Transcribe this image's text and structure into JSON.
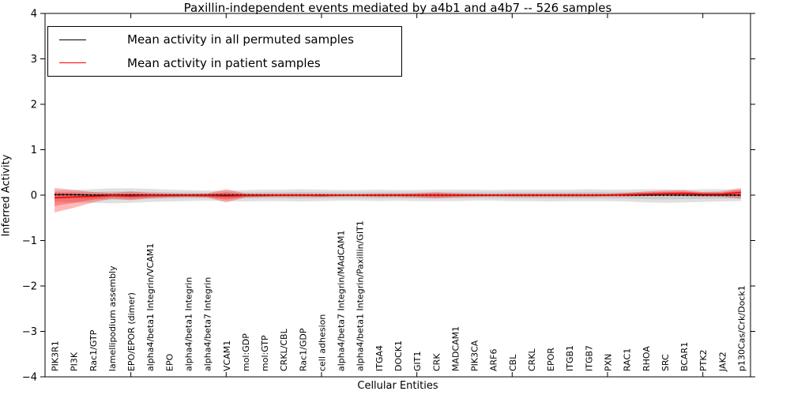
{
  "chart_data": {
    "type": "line",
    "title": "Paxillin-independent events mediated by a4b1 and a4b7 -- 526 samples",
    "xlabel": "Cellular Entities",
    "ylabel": "Inferred Activity",
    "ylim": [
      -4,
      4
    ],
    "yticks": [
      4,
      3,
      2,
      1,
      0,
      -1,
      -2,
      -3,
      -4
    ],
    "ytick_labels": [
      "4",
      "3",
      "2",
      "1",
      "0",
      "−1",
      "−2",
      "−3",
      "−4"
    ],
    "xtick_indices": [
      4,
      9,
      14,
      19,
      24,
      29,
      34
    ],
    "grid": false,
    "legend_position": "upper left",
    "categories": [
      "PIK3R1",
      "PI3K",
      "Rac1/GTP",
      "lamellipodium assembly",
      "EPO/EPOR (dimer)",
      "alpha4/beta1 Integrin/VCAM1",
      "EPO",
      "alpha4/beta1 Integrin",
      "alpha4/beta7 Integrin",
      "VCAM1",
      "mol:GDP",
      "mol:GTP",
      "CRKL/CBL",
      "Rac1/GDP",
      "cell adhesion",
      "alpha4/beta7 Integrin/MAdCAM1",
      "alpha4/beta1 Integrin/Paxillin/GIT1",
      "ITGA4",
      "DOCK1",
      "GIT1",
      "CRK",
      "MADCAM1",
      "PIK3CA",
      "ARF6",
      "CBL",
      "CRKL",
      "EPOR",
      "ITGB1",
      "ITGB7",
      "PXN",
      "RAC1",
      "RHOA",
      "SRC",
      "BCAR1",
      "PTK2",
      "JAK2",
      "p130Cas/Crk/Dock1"
    ],
    "series": [
      {
        "name": "Mean activity in all permuted samples",
        "color": "#000000",
        "line_style": "dotted",
        "values": [
          0.01,
          0.01,
          0.0,
          0.0,
          0.0,
          0.0,
          0.0,
          0.0,
          0.0,
          0.0,
          0.0,
          0.0,
          0.0,
          0.0,
          0.0,
          0.0,
          0.0,
          0.0,
          0.0,
          0.0,
          0.0,
          0.0,
          0.0,
          0.0,
          0.0,
          0.0,
          0.0,
          0.0,
          0.0,
          0.0,
          0.0,
          0.0,
          0.0,
          0.0,
          0.0,
          0.0,
          0.0
        ]
      },
      {
        "name": "Mean activity in patient samples",
        "color": "#ff0000",
        "line_style": "solid",
        "values": [
          -0.06,
          -0.04,
          -0.03,
          -0.01,
          -0.02,
          -0.01,
          -0.01,
          -0.01,
          -0.01,
          -0.02,
          -0.01,
          -0.01,
          0.0,
          0.0,
          -0.01,
          0.0,
          0.0,
          0.0,
          0.0,
          0.0,
          0.0,
          0.0,
          0.0,
          0.0,
          0.0,
          0.0,
          0.0,
          0.0,
          0.0,
          0.0,
          0.01,
          0.02,
          0.03,
          0.04,
          0.02,
          0.02,
          0.06
        ]
      }
    ],
    "bands": [
      {
        "name": "permuted-samples-envelope",
        "series": 0,
        "color": "#999999",
        "opacity": 0.3,
        "inner_scale": 0.55,
        "upper": [
          0.1,
          0.12,
          0.13,
          0.15,
          0.15,
          0.14,
          0.12,
          0.11,
          0.1,
          0.1,
          0.11,
          0.12,
          0.12,
          0.13,
          0.12,
          0.11,
          0.11,
          0.12,
          0.11,
          0.11,
          0.12,
          0.12,
          0.12,
          0.11,
          0.12,
          0.12,
          0.12,
          0.12,
          0.13,
          0.12,
          0.12,
          0.13,
          0.13,
          0.12,
          0.13,
          0.13,
          0.12
        ],
        "lower": [
          -0.14,
          -0.16,
          -0.17,
          -0.18,
          -0.17,
          -0.15,
          -0.14,
          -0.13,
          -0.12,
          -0.13,
          -0.14,
          -0.13,
          -0.13,
          -0.14,
          -0.13,
          -0.12,
          -0.12,
          -0.13,
          -0.12,
          -0.13,
          -0.13,
          -0.13,
          -0.12,
          -0.12,
          -0.13,
          -0.13,
          -0.14,
          -0.13,
          -0.13,
          -0.13,
          -0.14,
          -0.16,
          -0.17,
          -0.16,
          -0.15,
          -0.14,
          -0.13
        ]
      },
      {
        "name": "patient-samples-envelope",
        "series": 1,
        "color": "#ff0000",
        "opacity": 0.28,
        "inner_scale": 0.55,
        "upper": [
          0.16,
          0.11,
          0.07,
          0.05,
          0.08,
          0.05,
          0.04,
          0.03,
          0.04,
          0.13,
          0.04,
          0.03,
          0.03,
          0.03,
          0.03,
          0.02,
          0.02,
          0.03,
          0.03,
          0.04,
          0.06,
          0.04,
          0.03,
          0.02,
          0.03,
          0.03,
          0.03,
          0.03,
          0.03,
          0.03,
          0.05,
          0.08,
          0.1,
          0.11,
          0.07,
          0.08,
          0.16
        ],
        "lower": [
          -0.38,
          -0.28,
          -0.16,
          -0.08,
          -0.11,
          -0.07,
          -0.05,
          -0.04,
          -0.05,
          -0.16,
          -0.05,
          -0.04,
          -0.04,
          -0.04,
          -0.04,
          -0.03,
          -0.03,
          -0.04,
          -0.04,
          -0.05,
          -0.07,
          -0.05,
          -0.04,
          -0.03,
          -0.04,
          -0.04,
          -0.04,
          -0.04,
          -0.04,
          -0.03,
          -0.03,
          -0.02,
          -0.01,
          -0.02,
          -0.03,
          -0.04,
          -0.08
        ]
      }
    ]
  }
}
